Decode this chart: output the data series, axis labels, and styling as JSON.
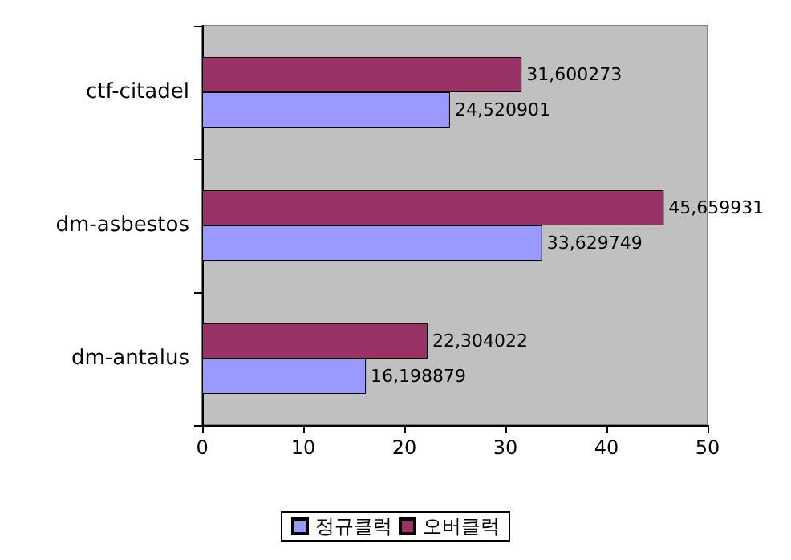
{
  "chart_data": {
    "type": "bar",
    "orientation": "horizontal",
    "categories": [
      "ctf-citadel",
      "dm-asbestos",
      "dm-antalus"
    ],
    "series": [
      {
        "name": "정규클럭",
        "color": "#9999ff",
        "values": [
          24.520901,
          33.629749,
          16.198879
        ],
        "value_labels": [
          "24,520901",
          "33,629749",
          "16,198879"
        ]
      },
      {
        "name": "오버클럭",
        "color": "#993366",
        "values": [
          31.600273,
          45.659931,
          22.304022
        ],
        "value_labels": [
          "31,600273",
          "45,659931",
          "22,304022"
        ]
      }
    ],
    "xlim": [
      0,
      50
    ],
    "xticks": [
      0,
      10,
      20,
      30,
      40,
      50
    ],
    "grid": false,
    "legend": "bottom"
  }
}
